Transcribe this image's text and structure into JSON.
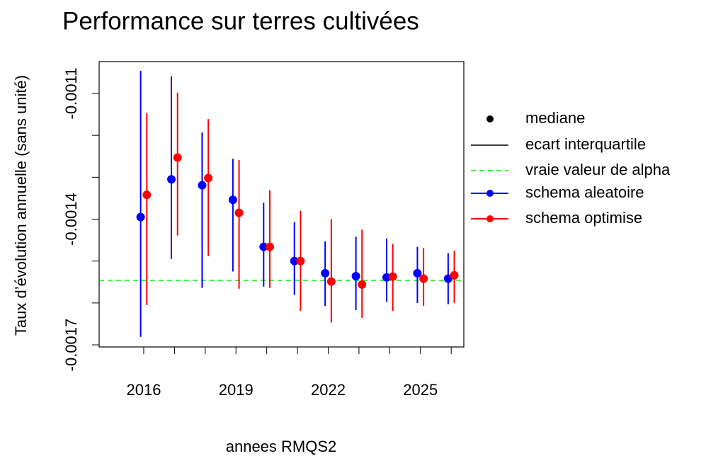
{
  "chart_data": {
    "type": "errorbar",
    "title": "Performance sur terres cultivées",
    "xlabel": "annees RMQS2",
    "ylabel": "Taux d’évolution annuelle (sans unité)",
    "xlim": [
      2014.55,
      2026.41
    ],
    "xticks": [
      2016,
      {
        "value": 2017,
        "label": null
      },
      {
        "value": 2018,
        "label": null
      },
      2019,
      {
        "value": 2020,
        "label": null
      },
      {
        "value": 2021,
        "label": null
      },
      2022,
      {
        "value": 2023,
        "label": null
      },
      {
        "value": 2024,
        "label": null
      },
      2025,
      {
        "value": 2026,
        "label": null
      }
    ],
    "ylim": [
      -0.001705,
      -0.001024
    ],
    "yticks": [
      -0.0011,
      {
        "value": -0.0012,
        "label": null
      },
      {
        "value": -0.0013,
        "label": null
      },
      -0.0014,
      {
        "value": -0.0015,
        "label": null
      },
      {
        "value": -0.0016,
        "label": null
      },
      -0.0017
    ],
    "legend_extra": [
      "mediane",
      "ecart interquartile"
    ],
    "reference": {
      "name": "vraie valeur de alpha",
      "value": -0.001546,
      "color": "#00ee00"
    },
    "series": [
      {
        "name": "schema aleatoire",
        "color": "#0000ff",
        "x": [
          2015.9,
          2016.9,
          2017.9,
          2018.9,
          2019.9,
          2020.9,
          2021.9,
          2022.9,
          2023.9,
          2024.9,
          2025.9
        ],
        "values": [
          -0.001395,
          -0.001305,
          -0.001319,
          -0.001354,
          -0.001466,
          -0.0015,
          -0.001529,
          -0.001536,
          -0.001539,
          -0.001529,
          -0.001542
        ],
        "low": [
          -0.001681,
          -0.001495,
          -0.001564,
          -0.001525,
          -0.001561,
          -0.001581,
          -0.001607,
          -0.001617,
          -0.001597,
          -0.0016,
          -0.001603
        ],
        "high": [
          -0.001046,
          -0.001059,
          -0.001193,
          -0.001256,
          -0.001361,
          -0.001407,
          -0.001453,
          -0.001442,
          -0.001446,
          -0.001466,
          -0.001481
        ]
      },
      {
        "name": "schema optimise",
        "color": "#ff0000",
        "x": [
          2016.1,
          2017.1,
          2018.1,
          2019.1,
          2020.1,
          2021.1,
          2022.1,
          2023.1,
          2024.1,
          2025.1,
          2026.1
        ],
        "values": [
          -0.001342,
          -0.001253,
          -0.001302,
          -0.001385,
          -0.001466,
          -0.0015,
          -0.001549,
          -0.001556,
          -0.001537,
          -0.001542,
          -0.001534
        ],
        "low": [
          -0.001605,
          -0.001439,
          -0.001488,
          -0.001566,
          -0.001564,
          -0.001619,
          -0.001647,
          -0.001636,
          -0.001619,
          -0.001607,
          -0.0016
        ],
        "high": [
          -0.001147,
          -0.001098,
          -0.001161,
          -0.001259,
          -0.001331,
          -0.00138,
          -0.0014,
          -0.001425,
          -0.001459,
          -0.001469,
          -0.001475
        ]
      }
    ]
  }
}
